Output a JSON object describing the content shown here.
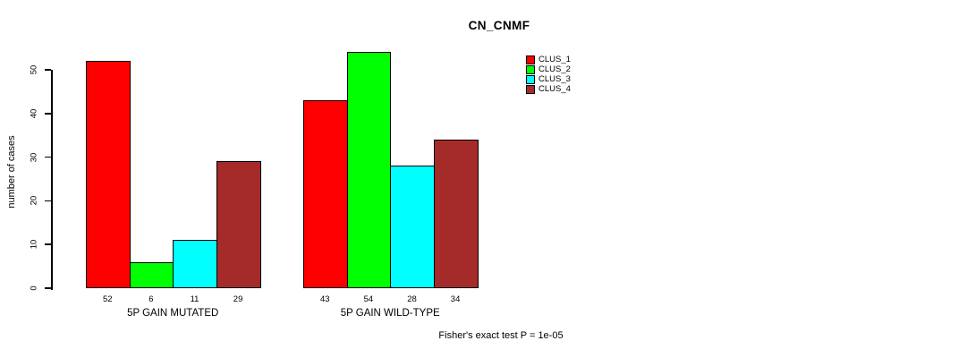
{
  "title": "CN_CNMF",
  "chart_data": {
    "type": "bar",
    "title": "CN_CNMF",
    "xlabel": "",
    "ylabel": "number of cases",
    "ylim": [
      0,
      55
    ],
    "yticks": [
      0,
      10,
      20,
      30,
      40,
      50
    ],
    "grid": false,
    "legend_position": "top-right",
    "categories": [
      "5P GAIN MUTATED",
      "5P GAIN WILD-TYPE"
    ],
    "series": [
      {
        "name": "CLUS_1",
        "color": "#ff0000",
        "values": [
          52,
          43
        ]
      },
      {
        "name": "CLUS_2",
        "color": "#00ff00",
        "values": [
          6,
          54
        ]
      },
      {
        "name": "CLUS_3",
        "color": "#00ffff",
        "values": [
          11,
          28
        ]
      },
      {
        "name": "CLUS_4",
        "color": "#a52a2a",
        "values": [
          29,
          34
        ]
      }
    ],
    "bar_value_labels": {
      "5P GAIN MUTATED": [
        52,
        6,
        11,
        29
      ],
      "5P GAIN WILD-TYPE": [
        43,
        54,
        28,
        34
      ]
    },
    "annotation": "Fisher's exact test P = 1e-05"
  },
  "colors": {
    "background": "#ffffff",
    "axis": "#000000",
    "bar_border": "#000000",
    "text": "#000000"
  }
}
